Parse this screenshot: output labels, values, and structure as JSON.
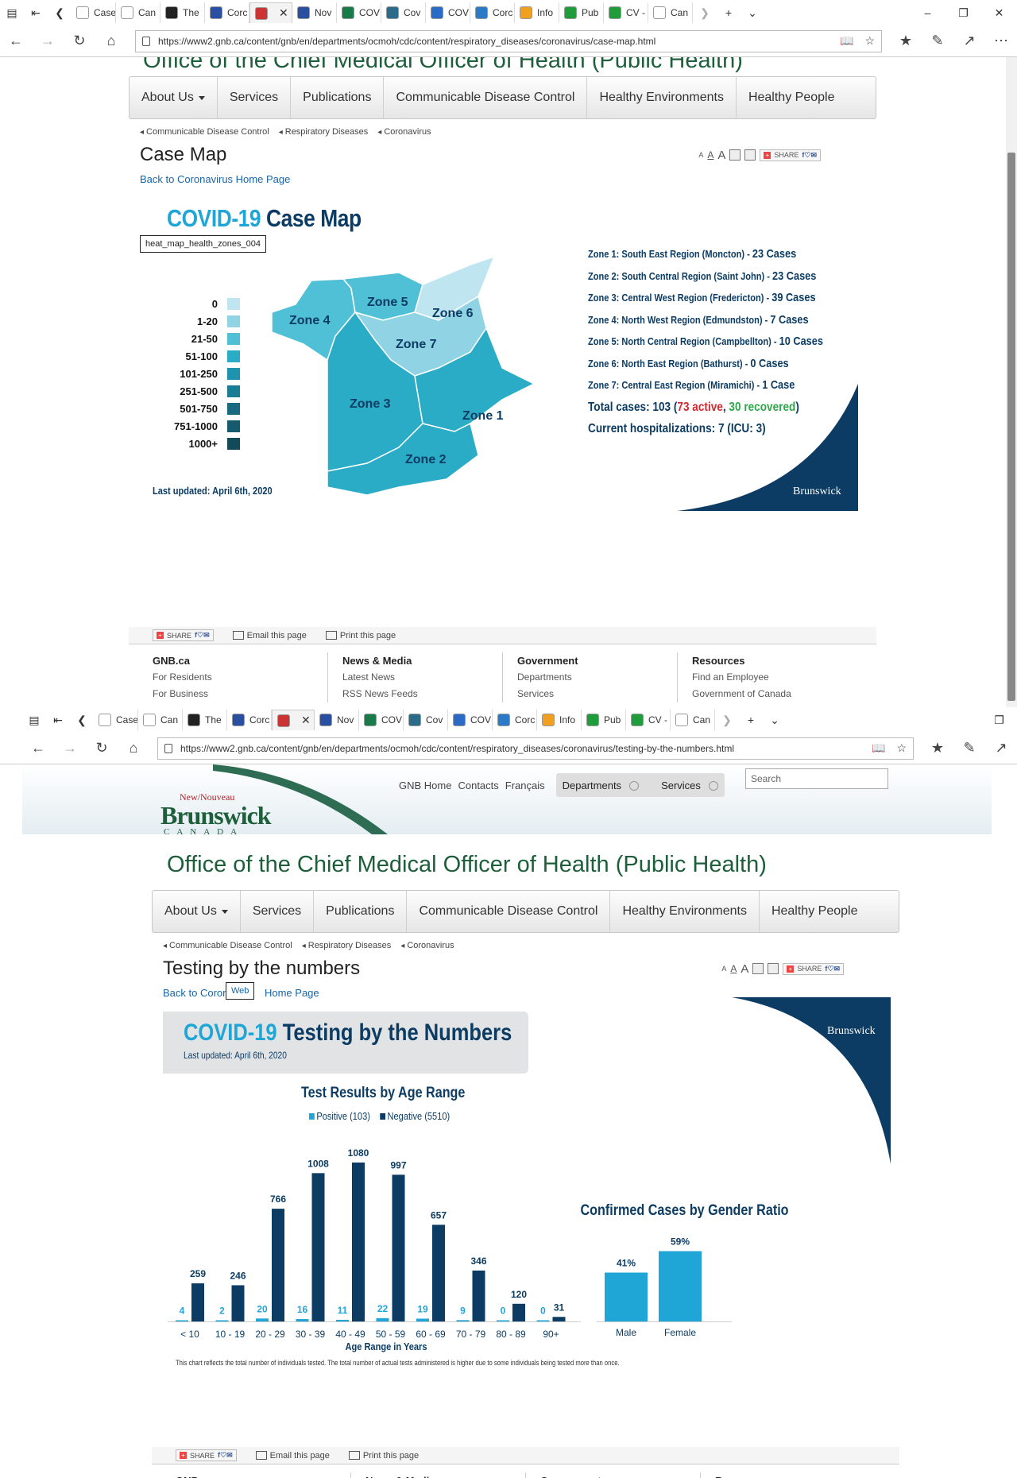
{
  "colors": {
    "navy": "#0c3c63",
    "cyan": "#1fa5d6",
    "red": "#d5282f",
    "green": "#2fa74b",
    "gnb_green": "#1d5f3a"
  },
  "win1": {
    "tabs": [
      "Case",
      "Can",
      "The",
      "Corc",
      "",
      "Nov",
      "COV",
      "Cov",
      "COV",
      "Corc",
      "Info",
      "Pub",
      "CV -",
      "Can"
    ],
    "url": "https://www2.gnb.ca/content/gnb/en/departments/ocmoh/cdc/content/respiratory_diseases/coronavirus/case-map.html",
    "page_title": "Case Map",
    "back_link": "Back to Coronavirus Home Page",
    "tooltip": "heat_map_health_zones_004",
    "map": {
      "title_hl": "COVID-19",
      "title_rest": " Case Map",
      "legend": [
        {
          "label": "0",
          "color": "#bfe6f0"
        },
        {
          "label": "1-20",
          "color": "#8fd3e4"
        },
        {
          "label": "21-50",
          "color": "#4fc0d6"
        },
        {
          "label": "51-100",
          "color": "#2aabc6"
        },
        {
          "label": "101-250",
          "color": "#1e93ae"
        },
        {
          "label": "251-500",
          "color": "#197d96"
        },
        {
          "label": "501-750",
          "color": "#176a80"
        },
        {
          "label": "751-1000",
          "color": "#155a6d"
        },
        {
          "label": "1000+",
          "color": "#134a5a"
        }
      ],
      "zone_labels": [
        "Zone 1",
        "Zone 2",
        "Zone 3",
        "Zone 4",
        "Zone 5",
        "Zone 6",
        "Zone 7"
      ],
      "zones": [
        {
          "text": "Zone 1: South East Region (Moncton) - ",
          "count": "23 Cases"
        },
        {
          "text": "Zone 2: South Central Region (Saint John) - ",
          "count": "23 Cases"
        },
        {
          "text": "Zone 3: Central West Region (Fredericton) - ",
          "count": "39 Cases"
        },
        {
          "text": "Zone 4: North West Region (Edmundston) - ",
          "count": "7 Cases"
        },
        {
          "text": "Zone 5: North Central Region (Campbellton) - ",
          "count": "10 Cases"
        },
        {
          "text": "Zone 6: North East Region (Bathurst) - ",
          "count": "0 Cases"
        },
        {
          "text": "Zone 7: Central East Region (Miramichi) - ",
          "count": "1 Case"
        }
      ],
      "total_prefix": "Total cases: 103 (",
      "active": "73 active",
      "sep": ", ",
      "recovered": "30 recovered",
      "total_suffix": ")",
      "hosp": "Current hospitalizations: 7 (ICU: 3)",
      "updated": "Last updated: April 6th, 2020",
      "brand": "Brunswick"
    }
  },
  "common": {
    "menu": [
      "About Us",
      "Services",
      "Publications",
      "Communicable Disease Control",
      "Healthy Environments",
      "Healthy People"
    ],
    "crumbs": [
      "Communicable Disease Control",
      "Respiratory Diseases",
      "Coronavirus"
    ],
    "share": "SHARE",
    "email": "Email this page",
    "print": "Print this page",
    "tools_a": [
      "A",
      "A",
      "A"
    ],
    "footer": [
      {
        "head": "GNB.ca",
        "items": [
          "For Residents",
          "For Business"
        ]
      },
      {
        "head": "News & Media",
        "items": [
          "Latest News",
          "RSS News Feeds"
        ]
      },
      {
        "head": "Government",
        "items": [
          "Departments",
          "Services"
        ]
      },
      {
        "head": "Resources",
        "items": [
          "Find an Employee",
          "Government of Canada"
        ]
      }
    ]
  },
  "win2": {
    "tabs": [
      "Case",
      "Can",
      "The",
      "Corc",
      "",
      "Nov",
      "COV",
      "Cov",
      "COV",
      "Corc",
      "Info",
      "Pub",
      "CV -",
      "Can"
    ],
    "url": "https://www2.gnb.ca/content/gnb/en/departments/ocmoh/cdc/content/respiratory_diseases/coronavirus/testing-by-the-numbers.html",
    "top_links": [
      "GNB Home",
      "Contacts",
      "Français"
    ],
    "departments": "Departments",
    "services": "Services",
    "search_placeholder": "Search",
    "logo": {
      "new": "New",
      "nouveau": "Nouveau",
      "brunswick": "Brunswick",
      "canada": "CANADA"
    },
    "site_title": "Office of the Chief Medical Officer of Health (Public Health)",
    "page_title": "Testing by the numbers",
    "back_link_a": "Back to Coron",
    "back_link_b": " Home Page",
    "tooltip": "Web",
    "tbn_title_hl": "COVID-19",
    "tbn_title_rest": " Testing by the Numbers",
    "tbn_updated": "Last updated: April 6th, 2020",
    "brand": "Brunswick",
    "note": "This chart reflects the total number of individuals tested. The total number of actual tests administered is higher due to some individuals being tested more than once."
  },
  "chart_data": [
    {
      "type": "bar",
      "title": "Test Results by Age Range",
      "xlabel": "Age Range in Years",
      "ylabel": "",
      "categories": [
        "< 10",
        "10 - 19",
        "20 - 29",
        "30 - 39",
        "40 - 49",
        "50 - 59",
        "60 - 69",
        "70 - 79",
        "80 - 89",
        "90+"
      ],
      "series": [
        {
          "name": "Positive (103)",
          "color": "#1fa5d6",
          "values": [
            4,
            2,
            20,
            16,
            11,
            22,
            19,
            9,
            0,
            0
          ]
        },
        {
          "name": "Negative (5510)",
          "color": "#0c3c63",
          "values": [
            259,
            246,
            766,
            1008,
            1080,
            997,
            657,
            346,
            120,
            31
          ]
        }
      ],
      "ylim": [
        0,
        1080
      ]
    },
    {
      "type": "bar",
      "title": "Confirmed Cases by Gender Ratio",
      "categories": [
        "Male",
        "Female"
      ],
      "values": [
        41,
        59
      ],
      "value_labels": [
        "41%",
        "59%"
      ],
      "color": "#1fa5d6"
    }
  ]
}
